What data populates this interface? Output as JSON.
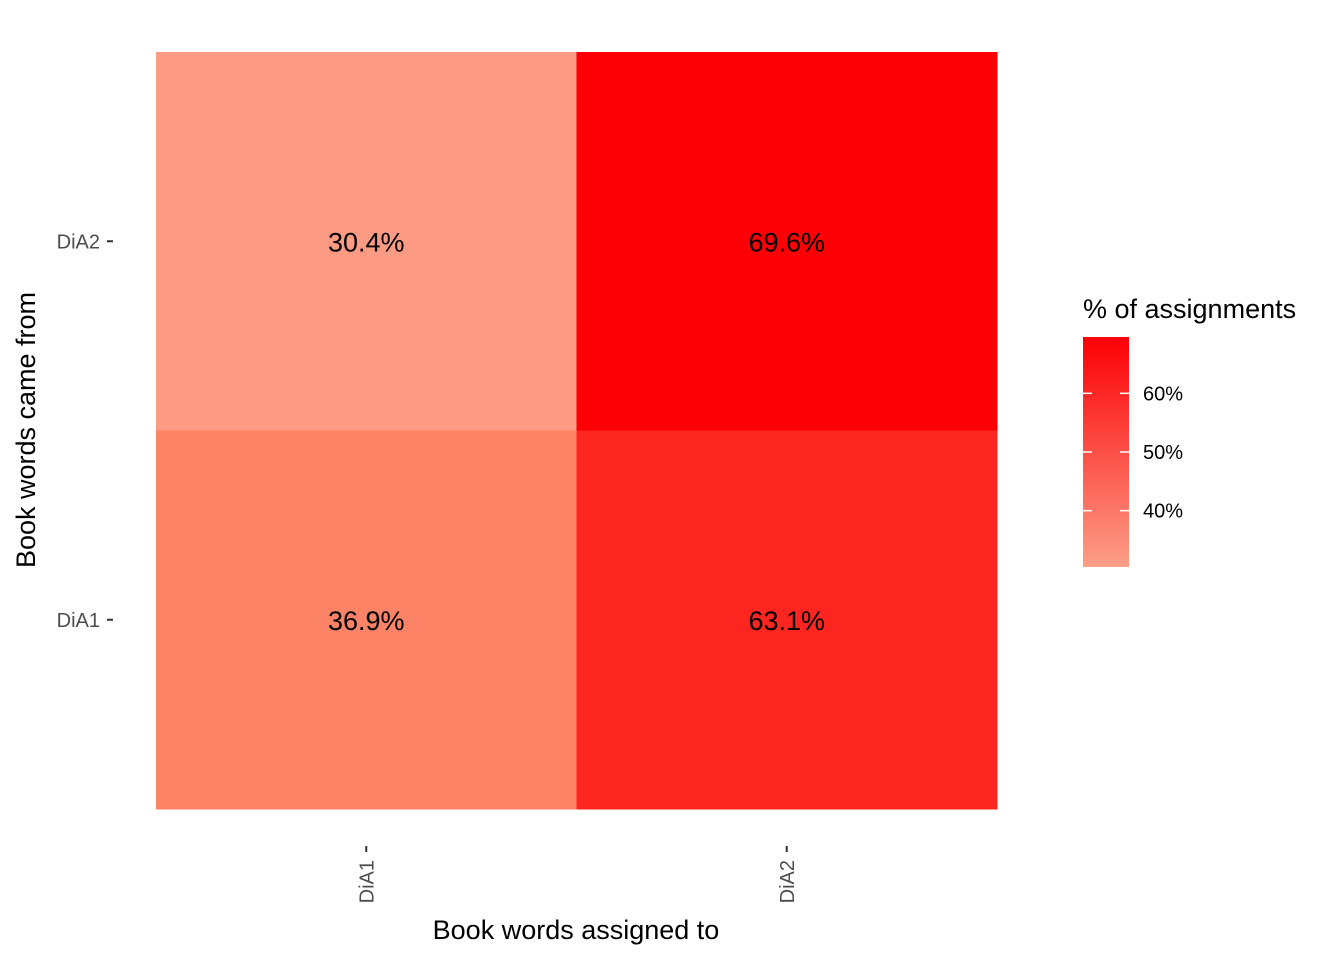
{
  "chart_data": {
    "type": "heatmap",
    "x_categories": [
      "DiA1",
      "DiA2"
    ],
    "y_categories": [
      "DiA1",
      "DiA2"
    ],
    "cells": [
      {
        "x": "DiA1",
        "y": "DiA2",
        "value": 30.4,
        "label": "30.4%",
        "color": "#FC9A83"
      },
      {
        "x": "DiA2",
        "y": "DiA2",
        "value": 69.6,
        "label": "69.6%",
        "color": "#FC0005"
      },
      {
        "x": "DiA1",
        "y": "DiA1",
        "value": 36.9,
        "label": "36.9%",
        "color": "#FC8366"
      },
      {
        "x": "DiA2",
        "y": "DiA1",
        "value": 63.1,
        "label": "63.1%",
        "color": "#FC251F"
      }
    ],
    "xlabel": "Book words assigned to",
    "ylabel": "Book words came from",
    "legend": {
      "title": "% of assignments",
      "ticks": [
        {
          "value": 40,
          "label": "40%"
        },
        {
          "value": 50,
          "label": "50%"
        },
        {
          "value": 60,
          "label": "60%"
        }
      ],
      "low_color": "#FC9E88",
      "high_color": "#FC0005",
      "range": [
        30.4,
        69.6
      ],
      "placement": "right"
    }
  }
}
